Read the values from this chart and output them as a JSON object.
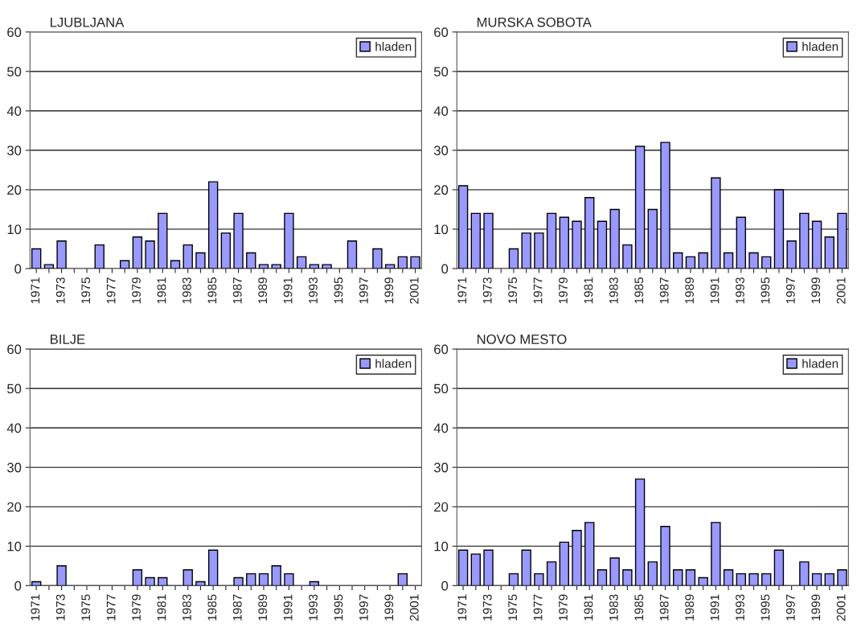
{
  "chart_data": [
    {
      "type": "bar",
      "title": "LJUBLJANA",
      "categories": [
        "1971",
        null,
        "1973",
        null,
        "1975",
        null,
        "1977",
        null,
        "1979",
        null,
        "1981",
        null,
        "1983",
        null,
        "1985",
        null,
        "1987",
        null,
        "1989",
        null,
        "1991",
        null,
        "1993",
        null,
        "1995",
        null,
        "1997",
        null,
        "1999",
        null,
        "2001"
      ],
      "series": [
        {
          "name": "hladen",
          "color": "#9999ff",
          "values": [
            5,
            1,
            7,
            0,
            0,
            6,
            0,
            2,
            8,
            7,
            14,
            2,
            6,
            4,
            22,
            9,
            14,
            4,
            1,
            1,
            14,
            3,
            1,
            1,
            0,
            7,
            0,
            5,
            1,
            3,
            3
          ]
        }
      ],
      "ylim": [
        0,
        60
      ],
      "yticks": [
        0,
        10,
        20,
        30,
        40,
        50,
        60
      ],
      "grid": "y",
      "legend": "top right"
    },
    {
      "type": "bar",
      "title": "MURSKA SOBOTA",
      "categories": [
        "1971",
        null,
        "1973",
        null,
        "1975",
        null,
        "1977",
        null,
        "1979",
        null,
        "1981",
        null,
        "1983",
        null,
        "1985",
        null,
        "1987",
        null,
        "1989",
        null,
        "1991",
        null,
        "1993",
        null,
        "1995",
        null,
        "1997",
        null,
        "1999",
        null,
        "2001"
      ],
      "series": [
        {
          "name": "hladen",
          "color": "#9999ff",
          "values": [
            21,
            14,
            14,
            0,
            5,
            9,
            9,
            14,
            13,
            12,
            18,
            12,
            15,
            6,
            31,
            15,
            32,
            4,
            3,
            4,
            23,
            4,
            13,
            4,
            3,
            20,
            7,
            14,
            12,
            8,
            14
          ]
        }
      ],
      "ylim": [
        0,
        60
      ],
      "yticks": [
        0,
        10,
        20,
        30,
        40,
        50,
        60
      ],
      "grid": "y",
      "legend": "top right"
    },
    {
      "type": "bar",
      "title": "BILJE",
      "categories": [
        "1971",
        null,
        "1973",
        null,
        "1975",
        null,
        "1977",
        null,
        "1979",
        null,
        "1981",
        null,
        "1983",
        null,
        "1985",
        null,
        "1987",
        null,
        "1989",
        null,
        "1991",
        null,
        "1993",
        null,
        "1995",
        null,
        "1997",
        null,
        "1999",
        null,
        "2001"
      ],
      "series": [
        {
          "name": "hladen",
          "color": "#9999ff",
          "values": [
            1,
            0,
            5,
            0,
            0,
            0,
            0,
            0,
            4,
            2,
            2,
            0,
            4,
            1,
            9,
            0,
            2,
            3,
            3,
            5,
            3,
            0,
            1,
            0,
            0,
            0,
            0,
            0,
            0,
            3,
            0
          ]
        }
      ],
      "ylim": [
        0,
        60
      ],
      "yticks": [
        0,
        10,
        20,
        30,
        40,
        50,
        60
      ],
      "grid": "y",
      "legend": "top right"
    },
    {
      "type": "bar",
      "title": "NOVO MESTO",
      "categories": [
        "1971",
        null,
        "1973",
        null,
        "1975",
        null,
        "1977",
        null,
        "1979",
        null,
        "1981",
        null,
        "1983",
        null,
        "1985",
        null,
        "1987",
        null,
        "1989",
        null,
        "1991",
        null,
        "1993",
        null,
        "1995",
        null,
        "1997",
        null,
        "1999",
        null,
        "2001"
      ],
      "series": [
        {
          "name": "hladen",
          "color": "#9999ff",
          "values": [
            9,
            8,
            9,
            0,
            3,
            9,
            3,
            6,
            11,
            14,
            16,
            4,
            7,
            4,
            27,
            6,
            15,
            4,
            4,
            2,
            16,
            4,
            3,
            3,
            3,
            9,
            0,
            6,
            3,
            3,
            4
          ]
        }
      ],
      "ylim": [
        0,
        60
      ],
      "yticks": [
        0,
        10,
        20,
        30,
        40,
        50,
        60
      ],
      "grid": "y",
      "legend": "top right"
    }
  ]
}
